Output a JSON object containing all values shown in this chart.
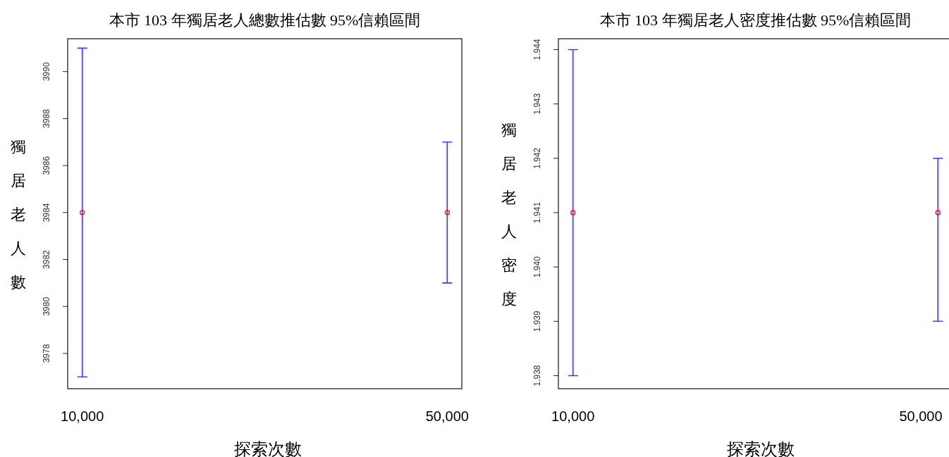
{
  "chart_data": [
    {
      "type": "scatter",
      "title": "本市 103 年獨居老人總數推估數 95%信賴區間",
      "xlabel": "探索次數",
      "ylabel": "獨居老人數",
      "categories": [
        "10,000",
        "50,000"
      ],
      "values": [
        3984,
        3984
      ],
      "errors": [
        [
          3977,
          3991
        ],
        [
          3981,
          3987
        ]
      ],
      "color": "#ff0000",
      "marker": "circle",
      "ylim": [
        3976.5,
        3991.4
      ],
      "yticks": [
        3978,
        3980,
        3982,
        3984,
        3986,
        3988,
        3990
      ]
    },
    {
      "type": "scatter",
      "title": "本市 103 年獨居老人密度推估數 95%信賴區間",
      "xlabel": "探索次數",
      "ylabel": "獨居老人密度",
      "categories": [
        "10,000",
        "50,000"
      ],
      "values": [
        1.941,
        1.941
      ],
      "errors": [
        [
          1.938,
          1.944
        ],
        [
          1.939,
          1.942
        ]
      ],
      "color": "#ff0000",
      "marker": "circle",
      "ylim": [
        1.93776,
        1.9442
      ],
      "yticks": [
        1.938,
        1.939,
        {
          "value": 1.94,
          "label": "1.940"
        },
        1.941,
        1.942,
        1.943,
        1.944
      ]
    }
  ]
}
